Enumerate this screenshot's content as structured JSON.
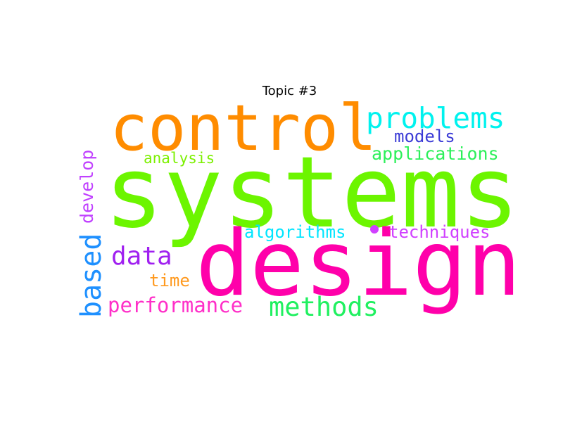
{
  "title": "Topic #3",
  "words": [
    {
      "text": "systems",
      "color": "#6cf500"
    },
    {
      "text": "design",
      "color": "#ff00aa"
    },
    {
      "text": "control",
      "color": "#ff8c00"
    },
    {
      "text": "problems",
      "color": "#00f2ee"
    },
    {
      "text": "models",
      "color": "#3b3bd6"
    },
    {
      "text": "applications",
      "color": "#2cf05a"
    },
    {
      "text": "analysis",
      "color": "#7cf000"
    },
    {
      "text": "develop",
      "color": "#c040ff"
    },
    {
      "text": "based",
      "color": "#1e90ff"
    },
    {
      "text": "data",
      "color": "#a020f0"
    },
    {
      "text": "algorithms",
      "color": "#00e5ff"
    },
    {
      "text": "techniques",
      "color": "#d040ff"
    },
    {
      "text": "time",
      "color": "#ff9a20"
    },
    {
      "text": "performance",
      "color": "#ff2fc8"
    },
    {
      "text": "methods",
      "color": "#20f060"
    }
  ]
}
